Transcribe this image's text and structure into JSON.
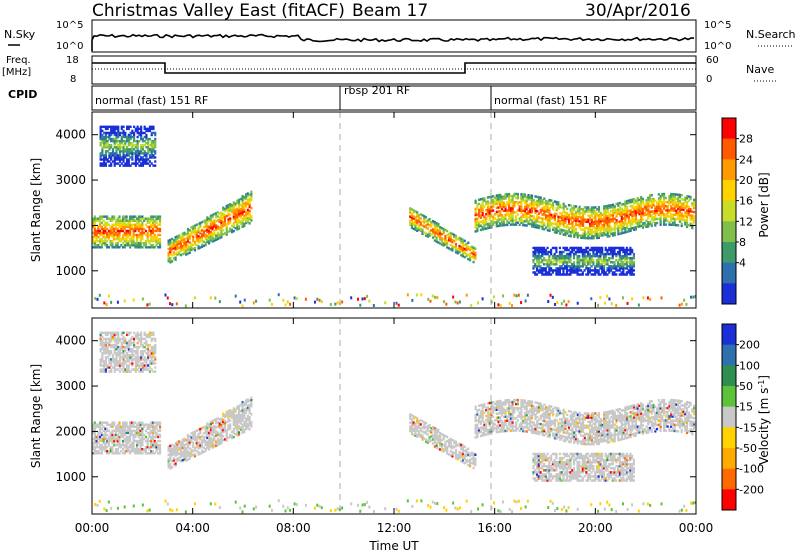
{
  "header": {
    "title": "Christmas Valley East (fitACF)",
    "beam": "Beam 17",
    "date": "30/Apr/2016"
  },
  "top_panel": {
    "left_label": "N.Sky",
    "left_ticks": [
      "10^5",
      "10^0"
    ],
    "right_label": "N.Search",
    "right_ticks": [
      "10^5",
      "10^0"
    ]
  },
  "freq_panel": {
    "left_label_1": "Freq.",
    "left_label_2": "[MHz]",
    "left_ticks": [
      "18",
      "8"
    ],
    "right_label": "Nave",
    "right_ticks": [
      "60",
      "0"
    ]
  },
  "cpid_panel": {
    "label": "CPID",
    "modes": [
      "normal (fast) 151 RF",
      "rbsp 201 RF",
      "normal (fast) 151 RF"
    ]
  },
  "chart_data": [
    {
      "type": "heatmap",
      "quantity": "Power",
      "ylabel": "Slant Range [km]",
      "xlabel": "Time UT",
      "y_ticks": [
        "4000",
        "3000",
        "2000",
        "1000"
      ],
      "ylim": [
        180,
        4500
      ],
      "colorbar": {
        "label": "Power [dB]",
        "ticks": [
          "28",
          "24",
          "20",
          "16",
          "12",
          "8",
          "4"
        ],
        "colors": [
          "#ff0000",
          "#ff5a00",
          "#ff9a00",
          "#ffd200",
          "#c8dc28",
          "#7fbf4a",
          "#3f9a6a",
          "#2e6fae",
          "#1a2fd8"
        ]
      },
      "bands": [
        {
          "t": [
            0.0,
            2.7
          ],
          "r": [
            1500,
            2200
          ]
        },
        {
          "t": [
            3.0,
            6.3
          ],
          "r": [
            1100,
            2800
          ]
        },
        {
          "t": [
            12.6,
            15.2
          ],
          "r": [
            1100,
            2400
          ]
        },
        {
          "t": [
            15.2,
            23.9
          ],
          "r": [
            1800,
            2800
          ]
        },
        {
          "t": [
            17.5,
            21.5
          ],
          "r": [
            900,
            1500
          ]
        },
        {
          "t": [
            0.3,
            2.5
          ],
          "r": [
            3300,
            4200
          ]
        }
      ]
    },
    {
      "type": "heatmap",
      "quantity": "Velocity",
      "ylabel": "Slant Range [km]",
      "xlabel": "Time UT",
      "y_ticks": [
        "4000",
        "3000",
        "2000",
        "1000"
      ],
      "ylim": [
        180,
        4500
      ],
      "colorbar": {
        "label": "Velocity [m s^-1]",
        "ticks": [
          "200",
          "100",
          "50",
          "15",
          "-15",
          "-50",
          "-100",
          "-200"
        ],
        "colors": [
          "#1a2fd8",
          "#2e6fae",
          "#2f8f4f",
          "#5cc23a",
          "#c8c8c8",
          "#ffd200",
          "#ffaa00",
          "#ff6a00",
          "#ff0000"
        ]
      }
    }
  ],
  "x_axis": {
    "ticks": [
      "00:00",
      "04:00",
      "08:00",
      "12:00",
      "16:00",
      "20:00",
      "00:00"
    ],
    "label": "Time UT"
  }
}
